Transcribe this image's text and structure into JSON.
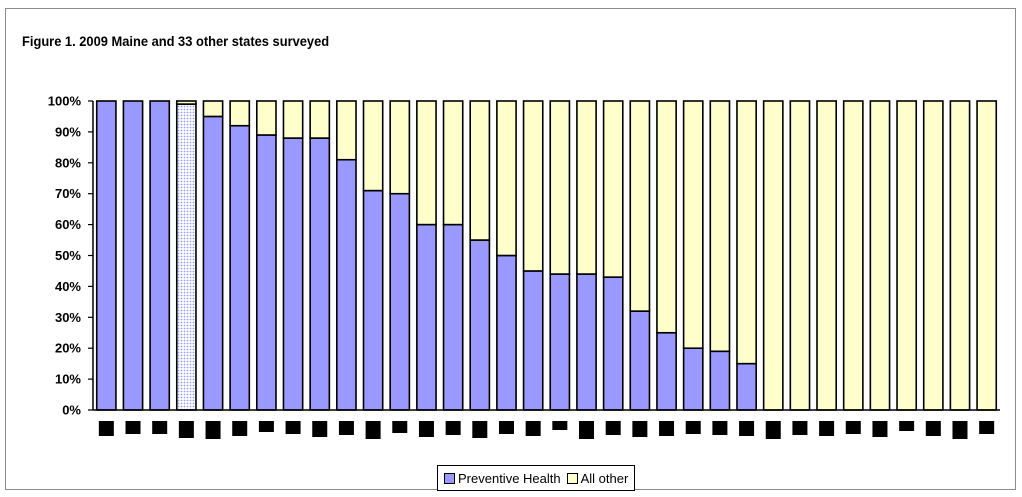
{
  "figure_title": "Figure 1.  2009 Maine and 33 other states surveyed",
  "colors": {
    "preventive": "#9999ff",
    "all_other": "#ffffcc",
    "highlight": "#d9d9f2",
    "outline": "#000000"
  },
  "chart_data": {
    "type": "bar",
    "stacked": true,
    "title": "Figure 1.  2009 Maine and 33 other states surveyed",
    "xlabel": "",
    "ylabel": "",
    "ylim": [
      0,
      100
    ],
    "y_ticks": [
      "0%",
      "10%",
      "20%",
      "30%",
      "40%",
      "50%",
      "60%",
      "70%",
      "80%",
      "90%",
      "100%"
    ],
    "categories": [
      "",
      "",
      "",
      "",
      "",
      "",
      "",
      "",
      "",
      "",
      "",
      "",
      "",
      "",
      "",
      "",
      "",
      "",
      "",
      "",
      "",
      "",
      "",
      "",
      "",
      "",
      "",
      "",
      "",
      "",
      "",
      "",
      "",
      ""
    ],
    "highlighted_index": 3,
    "series": [
      {
        "name": "Preventive Health",
        "values": [
          100,
          100,
          100,
          99,
          95,
          92,
          89,
          88,
          88,
          81,
          71,
          70,
          60,
          60,
          55,
          50,
          45,
          44,
          44,
          43,
          32,
          25,
          20,
          19,
          15,
          0,
          0,
          0,
          0,
          0,
          0,
          0,
          0,
          0
        ]
      },
      {
        "name": "All other",
        "values": [
          0,
          0,
          0,
          1,
          5,
          8,
          11,
          12,
          12,
          19,
          29,
          30,
          40,
          40,
          45,
          50,
          55,
          56,
          56,
          57,
          68,
          75,
          80,
          81,
          85,
          100,
          100,
          100,
          100,
          100,
          100,
          100,
          100,
          100
        ]
      }
    ],
    "grid": false,
    "legend_position": "bottom"
  },
  "legend": {
    "preventive_label": "Preventive Health",
    "other_label": "All other"
  }
}
